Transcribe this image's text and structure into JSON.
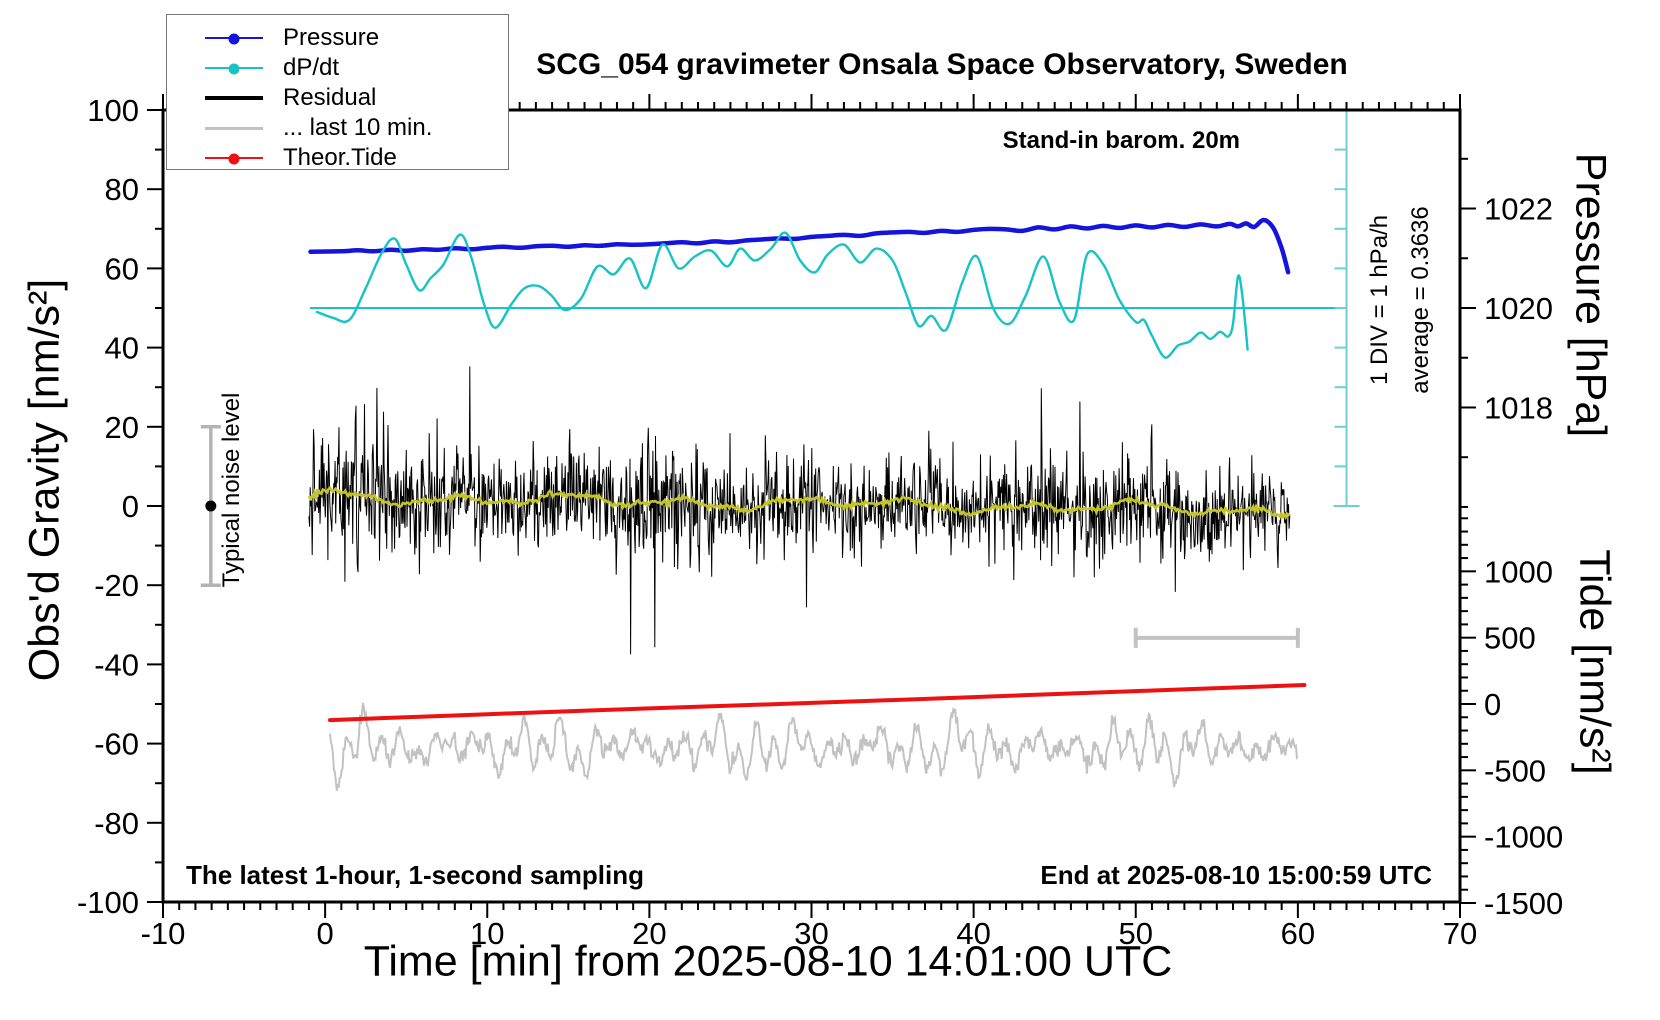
{
  "header": {
    "title": "SCG_054 gravimeter Onsala Space Observatory, Sweden"
  },
  "annotations": {
    "stand_in": "Stand-in barom. 20m",
    "sampling_note": "The latest 1-hour, 1-second sampling",
    "end_note": "End at 2025-08-10 15:00:59 UTC",
    "div_label": "1 DIV = 1 hPa/h",
    "average_label": "average = 0.3636",
    "noise_label": "Typical noise level"
  },
  "colors": {
    "pressure": "#1414dc",
    "dpdt": "#17c3c3",
    "dpdt_scale": "#6fcfcf",
    "residual": "#000000",
    "filtered": "#c3c32a",
    "last10": "#c2c2c2",
    "tide": "#ee1111",
    "noise_bar": "#b4b4b4",
    "frame": "#000000"
  },
  "legend": {
    "items": [
      {
        "key": "pressure",
        "label": "Pressure",
        "color": "#1414dc",
        "dot": true,
        "thickness": 2
      },
      {
        "key": "dpdt",
        "label": "dP/dt",
        "color": "#17c3c3",
        "dot": true,
        "thickness": 2
      },
      {
        "key": "residual",
        "label": "Residual",
        "color": "#000000",
        "dot": false,
        "thickness": 4
      },
      {
        "key": "last10",
        "label": "... last 10 min.",
        "color": "#c2c2c2",
        "dot": false,
        "thickness": 3
      },
      {
        "key": "tide",
        "label": "Theor.Tide",
        "color": "#ee1111",
        "dot": true,
        "thickness": 2
      }
    ]
  },
  "axes": {
    "x": {
      "label": "Time [min] from 2025-08-10 14:01:00 UTC",
      "range": [
        -10,
        70
      ],
      "ticks": [
        -10,
        0,
        10,
        20,
        30,
        40,
        50,
        60,
        70
      ],
      "minor_step": 1
    },
    "y_left": {
      "label": "Obs'd Gravity [nm/s²]",
      "range": [
        -100,
        100
      ],
      "ticks": [
        100,
        80,
        60,
        40,
        20,
        0,
        -20,
        -40,
        -60,
        -80,
        -100
      ],
      "minor_step": 10
    },
    "y_right_pressure": {
      "label": "Pressure [hPa]",
      "ticks": [
        1022,
        1020,
        1018
      ],
      "minor_ticks": [
        1023,
        1021,
        1019,
        1017,
        1016
      ]
    },
    "y_right_tide": {
      "label": "Tide [nm/s²]",
      "ticks": [
        1000,
        500,
        0,
        -500,
        -1000,
        -1500
      ],
      "minor_step": 100,
      "minor_range": [
        1400,
        -1500
      ]
    }
  },
  "chart_data": {
    "type": "line",
    "title": "SCG_054 gravimeter Onsala Space Observatory, Sweden",
    "xlabel": "Time [min] from 2025-08-10 14:01:00 UTC",
    "x_range_min": [
      -10,
      70
    ],
    "y_left_range": [
      -100,
      100
    ],
    "pressure_axis_hpa": [
      1016,
      1024
    ],
    "tide_axis_nms2": [
      -1500,
      1000
    ],
    "grid": false,
    "series": [
      {
        "name": "Pressure",
        "unit": "hPa",
        "axis": "pressure",
        "color": "#1414dc",
        "width": 4.5,
        "smooth": true,
        "points": [
          [
            -0.9,
            1021.13
          ],
          [
            1,
            1021.14
          ],
          [
            2,
            1021.16
          ],
          [
            3,
            1021.14
          ],
          [
            4,
            1021.17
          ],
          [
            5,
            1021.15
          ],
          [
            6,
            1021.18
          ],
          [
            7,
            1021.17
          ],
          [
            8,
            1021.2
          ],
          [
            9,
            1021.18
          ],
          [
            10,
            1021.21
          ],
          [
            11,
            1021.23
          ],
          [
            12,
            1021.21
          ],
          [
            13,
            1021.24
          ],
          [
            14,
            1021.25
          ],
          [
            15,
            1021.23
          ],
          [
            16,
            1021.26
          ],
          [
            17,
            1021.25
          ],
          [
            18,
            1021.28
          ],
          [
            19,
            1021.27
          ],
          [
            20,
            1021.28
          ],
          [
            21,
            1021.3
          ],
          [
            22,
            1021.32
          ],
          [
            23,
            1021.3
          ],
          [
            24,
            1021.34
          ],
          [
            25,
            1021.32
          ],
          [
            26,
            1021.36
          ],
          [
            27,
            1021.38
          ],
          [
            28,
            1021.4
          ],
          [
            29,
            1021.39
          ],
          [
            30,
            1021.43
          ],
          [
            31,
            1021.45
          ],
          [
            32,
            1021.47
          ],
          [
            33,
            1021.45
          ],
          [
            34,
            1021.5
          ],
          [
            35,
            1021.52
          ],
          [
            36,
            1021.53
          ],
          [
            37,
            1021.51
          ],
          [
            38,
            1021.55
          ],
          [
            39,
            1021.53
          ],
          [
            40,
            1021.57
          ],
          [
            41,
            1021.59
          ],
          [
            42,
            1021.58
          ],
          [
            43,
            1021.55
          ],
          [
            44,
            1021.62
          ],
          [
            45,
            1021.58
          ],
          [
            46,
            1021.64
          ],
          [
            47,
            1021.6
          ],
          [
            48,
            1021.65
          ],
          [
            49,
            1021.61
          ],
          [
            50,
            1021.66
          ],
          [
            51,
            1021.62
          ],
          [
            52,
            1021.67
          ],
          [
            53,
            1021.63
          ],
          [
            54,
            1021.68
          ],
          [
            55,
            1021.64
          ],
          [
            55.8,
            1021.69
          ],
          [
            56.3,
            1021.64
          ],
          [
            56.8,
            1021.7
          ],
          [
            57.3,
            1021.63
          ],
          [
            57.9,
            1021.77
          ],
          [
            58.5,
            1021.6
          ],
          [
            59.0,
            1021.2
          ],
          [
            59.4,
            1020.72
          ]
        ]
      },
      {
        "name": "dP/dt",
        "unit": "hPa/h",
        "axis": "dpdt",
        "color": "#17c3c3",
        "width": 2.4,
        "smooth": true,
        "average_hpa_h": 0.3636,
        "points": [
          [
            -0.5,
            -0.1
          ],
          [
            0.5,
            -0.25
          ],
          [
            1.5,
            -0.3
          ],
          [
            2.5,
            0.5
          ],
          [
            3.5,
            1.4
          ],
          [
            4.3,
            1.75
          ],
          [
            5.0,
            1.1
          ],
          [
            5.8,
            0.45
          ],
          [
            6.5,
            0.75
          ],
          [
            7.3,
            1.1
          ],
          [
            8.3,
            1.85
          ],
          [
            9.0,
            1.3
          ],
          [
            9.8,
            0.1
          ],
          [
            10.5,
            -0.5
          ],
          [
            11.5,
            0.1
          ],
          [
            12.3,
            0.5
          ],
          [
            13.2,
            0.55
          ],
          [
            14.0,
            0.3
          ],
          [
            14.8,
            -0.05
          ],
          [
            15.8,
            0.25
          ],
          [
            16.8,
            1.05
          ],
          [
            17.8,
            0.85
          ],
          [
            18.8,
            1.25
          ],
          [
            19.8,
            0.5
          ],
          [
            20.8,
            1.6
          ],
          [
            21.8,
            1.0
          ],
          [
            22.8,
            1.3
          ],
          [
            23.8,
            1.45
          ],
          [
            24.8,
            1.05
          ],
          [
            25.6,
            1.5
          ],
          [
            26.5,
            1.2
          ],
          [
            27.5,
            1.5
          ],
          [
            28.4,
            1.9
          ],
          [
            29.3,
            1.2
          ],
          [
            30.2,
            0.9
          ],
          [
            31.0,
            1.35
          ],
          [
            32.0,
            1.6
          ],
          [
            33.0,
            1.15
          ],
          [
            34.0,
            1.5
          ],
          [
            35.0,
            1.2
          ],
          [
            35.8,
            0.4
          ],
          [
            36.6,
            -0.45
          ],
          [
            37.4,
            -0.2
          ],
          [
            38.3,
            -0.55
          ],
          [
            39.3,
            0.65
          ],
          [
            40.2,
            1.3
          ],
          [
            41.2,
            0.0
          ],
          [
            42.2,
            -0.4
          ],
          [
            43.2,
            0.3
          ],
          [
            44.3,
            1.3
          ],
          [
            45.3,
            0.15
          ],
          [
            46.2,
            -0.3
          ],
          [
            47.0,
            1.35
          ],
          [
            48.0,
            1.1
          ],
          [
            49.0,
            0.2
          ],
          [
            50.0,
            -0.35
          ],
          [
            50.5,
            -0.3
          ],
          [
            51.0,
            -0.7
          ],
          [
            51.8,
            -1.25
          ],
          [
            52.6,
            -0.95
          ],
          [
            53.3,
            -0.85
          ],
          [
            54.0,
            -0.62
          ],
          [
            54.6,
            -0.78
          ],
          [
            55.2,
            -0.6
          ],
          [
            55.7,
            -0.72
          ],
          [
            56.0,
            -0.4
          ],
          [
            56.3,
            0.78
          ],
          [
            56.55,
            0.4
          ],
          [
            56.9,
            -1.05
          ]
        ]
      },
      {
        "name": "Residual",
        "unit": "nm/s2",
        "axis": "left",
        "color": "#000000",
        "width": 1,
        "gen": {
          "seed": 20250810,
          "n": 1500,
          "t_start": -1.0,
          "t_end": 59.5,
          "sigma": 6.0,
          "spike_prob": 0.02,
          "spike_scale": 2.4,
          "mean_start": 2.3,
          "mean_end": -1.2,
          "waves": [
            [
              1.0,
              0.9,
              0.6
            ],
            [
              0.7,
              0.37,
              2.1
            ],
            [
              0.45,
              2.3,
              1.0
            ]
          ],
          "bursts": [
            [
              2,
              0.7,
              6
            ],
            [
              21,
              0.45,
              8
            ],
            [
              46,
              0.25,
              30
            ]
          ]
        }
      },
      {
        "name": "Residual filtered",
        "unit": "nm/s2",
        "axis": "left",
        "color": "#c3c32a",
        "width": 2.6,
        "gen": {
          "seed": 99,
          "n": 700,
          "t_start": -1.0,
          "t_end": 59.5,
          "jitter": 0.35,
          "mean_start": 2.3,
          "mean_end": -1.2,
          "waves": [
            [
              1.0,
              0.9,
              0.6
            ],
            [
              0.7,
              0.37,
              2.1
            ],
            [
              0.45,
              2.3,
              1.0
            ]
          ]
        }
      },
      {
        "name": "... last 10 min.",
        "unit": "nm/s2",
        "axis": "left",
        "color": "#c2c2c2",
        "width": 2,
        "gen": {
          "seed": 777,
          "n": 1000,
          "t_start": 0.3,
          "t_end": 60.0,
          "center": -60.9,
          "amps": [
            3.3,
            2.4,
            1.5
          ],
          "periods": [
            1.1,
            2.45,
            5.2
          ],
          "phases": [
            0.4,
            2.2,
            4.4
          ],
          "jitter": 1.1,
          "env_amp": 0.45,
          "env_period": 12.5
        }
      },
      {
        "name": "Theor.Tide",
        "unit": "nm/s2",
        "axis": "tide",
        "color": "#ee1111",
        "width": 4,
        "smooth": true,
        "points": [
          [
            0.3,
            -121
          ],
          [
            10,
            -77
          ],
          [
            20,
            -33
          ],
          [
            30,
            8
          ],
          [
            40,
            52
          ],
          [
            50,
            97
          ],
          [
            60.4,
            143
          ]
        ]
      }
    ],
    "extras": {
      "noise_bar": {
        "t": -7.05,
        "center": 0,
        "half_height": 20
      },
      "last10_window_bracket": {
        "t_start": 50,
        "t_end": 60,
        "value_left_axis": -33.3
      },
      "pressure_baseline_hpa": 1020,
      "div_scale": {
        "divisions": 10,
        "div_value": "1 hPa/h"
      }
    }
  }
}
